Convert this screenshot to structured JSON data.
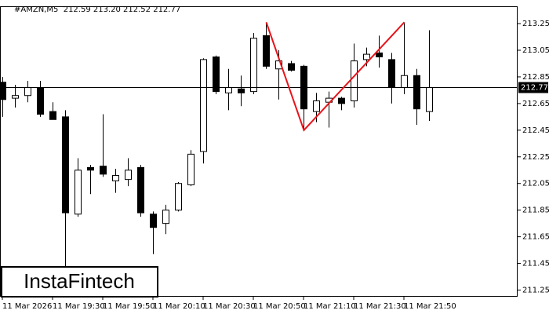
{
  "chart_data": {
    "type": "candlestick",
    "title": "#AMZN,M5  212.59 213.20 212.52 212.77",
    "watermark": "InstaFintech",
    "categories": [
      "11 Mar 2026",
      null,
      null,
      null,
      "11 Mar 19:30",
      null,
      null,
      null,
      "11 Mar 19:50",
      null,
      null,
      null,
      "11 Mar 20:10",
      null,
      null,
      null,
      "11 Mar 20:30",
      null,
      null,
      null,
      "11 Mar 20:50",
      null,
      null,
      null,
      "11 Mar 21:10",
      null,
      null,
      null,
      "11 Mar 21:30",
      null,
      null,
      null,
      "11 Mar 21:50",
      null,
      null
    ],
    "open": [
      212.81,
      212.69,
      212.71,
      212.77,
      212.59,
      212.55,
      211.82,
      212.17,
      212.18,
      212.07,
      212.08,
      212.17,
      211.82,
      211.75,
      211.85,
      212.04,
      212.29,
      213.0,
      212.73,
      212.76,
      212.74,
      213.16,
      212.91,
      212.95,
      212.93,
      212.59,
      212.66,
      212.69,
      212.67,
      212.98,
      213.03,
      212.98,
      212.77,
      212.86,
      212.59
    ],
    "high": [
      212.85,
      212.79,
      212.82,
      212.82,
      212.66,
      212.6,
      212.24,
      212.19,
      212.57,
      212.16,
      212.24,
      212.19,
      211.84,
      211.89,
      212.06,
      212.3,
      212.99,
      213.01,
      212.91,
      212.86,
      213.18,
      213.26,
      213.05,
      212.97,
      212.94,
      212.73,
      212.74,
      212.7,
      213.1,
      213.07,
      213.16,
      213.03,
      213.26,
      212.91,
      213.2
    ],
    "low": [
      212.55,
      212.62,
      212.66,
      212.55,
      212.53,
      211.42,
      211.8,
      211.97,
      212.1,
      211.98,
      212.03,
      211.8,
      211.52,
      211.67,
      211.84,
      212.03,
      212.2,
      212.72,
      212.6,
      212.63,
      212.72,
      212.91,
      212.68,
      212.89,
      212.45,
      212.51,
      212.47,
      212.6,
      212.62,
      212.93,
      212.92,
      212.65,
      212.72,
      212.49,
      212.52
    ],
    "close": [
      212.68,
      212.71,
      212.77,
      212.57,
      212.53,
      211.83,
      212.15,
      212.15,
      212.12,
      212.11,
      212.15,
      211.83,
      211.72,
      211.85,
      212.05,
      212.27,
      212.98,
      212.74,
      212.77,
      212.73,
      213.14,
      212.93,
      212.97,
      212.9,
      212.61,
      212.67,
      212.69,
      212.65,
      212.97,
      213.02,
      213.0,
      212.77,
      212.86,
      212.61,
      212.77
    ],
    "up_color": "#ffffff",
    "down_color": "#000000",
    "price_line": 212.77,
    "pattern": {
      "color": "#e8141b",
      "x": [
        21,
        24,
        32
      ],
      "y": [
        213.26,
        212.45,
        213.26
      ]
    },
    "ylim": [
      211.2,
      213.38
    ],
    "yticks": [
      211.25,
      211.45,
      211.65,
      211.85,
      212.05,
      212.25,
      212.45,
      212.65,
      212.85,
      213.05,
      213.25
    ]
  }
}
